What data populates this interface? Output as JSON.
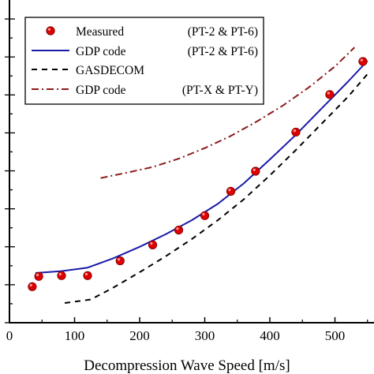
{
  "chart_data": {
    "type": "scatter",
    "xlabel": "Decompression Wave Speed [m/s]",
    "ylabel": "",
    "xlim": [
      0,
      560
    ],
    "ylim": [
      0,
      8.5
    ],
    "x_ticks": [
      0,
      100,
      200,
      300,
      400,
      500
    ],
    "legend_position": "top-left",
    "grid": false,
    "series": [
      {
        "name": "Measured",
        "suffix": "(PT-2 & PT-6)",
        "kind": "points",
        "color": "#dd0000",
        "x": [
          35,
          45,
          80,
          120,
          170,
          220,
          260,
          300,
          340,
          378,
          440,
          492,
          543
        ],
        "y": [
          0.95,
          1.22,
          1.24,
          1.24,
          1.63,
          2.05,
          2.44,
          2.82,
          3.46,
          3.99,
          5.02,
          6.01,
          6.88
        ]
      },
      {
        "name": "GDP code",
        "suffix": "(PT-2 & PT-6)",
        "kind": "line",
        "color": "#1a1aa8",
        "dash": "solid",
        "x": [
          40,
          80,
          120,
          160,
          200,
          240,
          280,
          320,
          360,
          400,
          440,
          480,
          520,
          550
        ],
        "y": [
          1.31,
          1.36,
          1.45,
          1.7,
          2.0,
          2.33,
          2.7,
          3.13,
          3.67,
          4.3,
          4.95,
          5.65,
          6.35,
          6.9
        ]
      },
      {
        "name": "GASDECOM",
        "suffix": "",
        "kind": "line",
        "color": "#000000",
        "dash": "7,6",
        "x": [
          85,
          125,
          160,
          200,
          240,
          280,
          320,
          360,
          400,
          440,
          480,
          520,
          550
        ],
        "y": [
          0.52,
          0.61,
          0.93,
          1.33,
          1.75,
          2.2,
          2.7,
          3.25,
          3.88,
          4.55,
          5.25,
          5.95,
          6.55
        ]
      },
      {
        "name": "GDP code",
        "suffix": "(PT-X & PT-Y)",
        "kind": "line",
        "color": "#8b1a1a",
        "dash": "9,4,2,4",
        "x": [
          140,
          180,
          220,
          260,
          300,
          340,
          380,
          420,
          460,
          500,
          530
        ],
        "y": [
          3.81,
          3.95,
          4.1,
          4.32,
          4.6,
          4.92,
          5.3,
          5.72,
          6.2,
          6.75,
          7.25
        ]
      }
    ]
  }
}
